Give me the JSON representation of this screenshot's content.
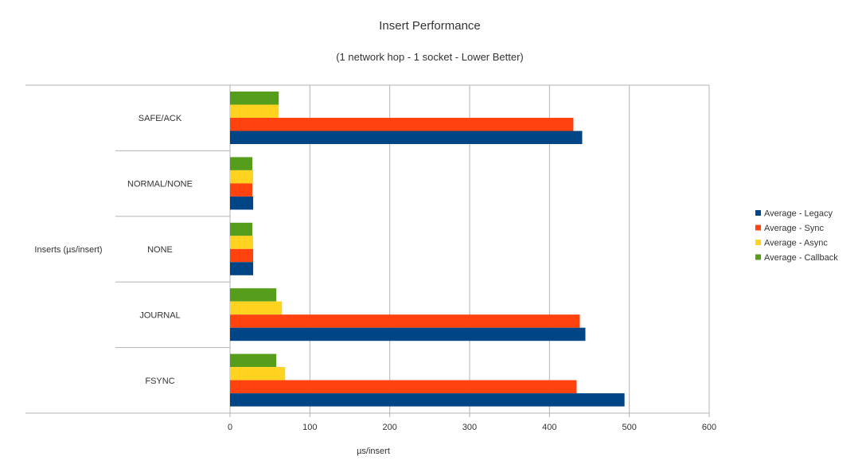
{
  "chart_data": {
    "type": "bar",
    "orientation": "horizontal",
    "title": "Insert Performance",
    "subtitle": "(1 network hop - 1 socket - Lower Better)",
    "xlabel": "µs/insert",
    "ylabel": "Inserts (µs/insert)",
    "xlim": [
      0,
      600
    ],
    "x_ticks": [
      0,
      100,
      200,
      300,
      400,
      500,
      600
    ],
    "grid": true,
    "legend_position": "right",
    "categories": [
      "SAFE/ACK",
      "NORMAL/NONE",
      "NONE",
      "JOURNAL",
      "FSYNC"
    ],
    "series": [
      {
        "name": "Average -  Legacy",
        "color": "#004586",
        "values": [
          441,
          29,
          29,
          445,
          494
        ]
      },
      {
        "name": "Average -  Sync",
        "color": "#ff420e",
        "values": [
          430,
          28,
          29,
          438,
          434
        ]
      },
      {
        "name": "Average -  Async",
        "color": "#ffd320",
        "values": [
          61,
          29,
          29,
          65,
          69
        ]
      },
      {
        "name": "Average -  Callback",
        "color": "#579d1c",
        "values": [
          61,
          28,
          28,
          58,
          58
        ]
      }
    ]
  }
}
